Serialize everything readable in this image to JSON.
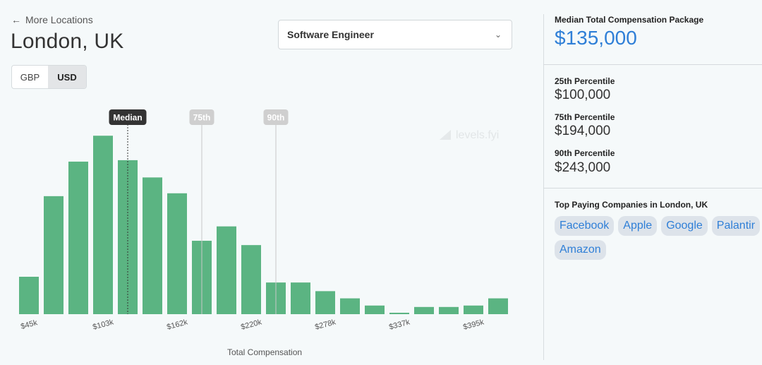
{
  "back_link": "More Locations",
  "location": "London, UK",
  "currency": {
    "options": [
      "GBP",
      "USD"
    ],
    "selected": "USD"
  },
  "role": "Software Engineer",
  "watermark": "levels.fyi",
  "summary": {
    "median_label": "Median Total Compensation Package",
    "median_value": "$135,000",
    "percentiles": [
      {
        "label": "25th Percentile",
        "value": "$100,000"
      },
      {
        "label": "75th Percentile",
        "value": "$194,000"
      },
      {
        "label": "90th Percentile",
        "value": "$243,000"
      }
    ]
  },
  "top_companies": {
    "title": "Top Paying Companies in London, UK",
    "companies": [
      "Facebook",
      "Apple",
      "Google",
      "Palantir",
      "Amazon"
    ]
  },
  "colors": {
    "bar": "#5bb482",
    "accent": "#2f7fd7",
    "median_marker": "#333333",
    "pct_marker": "#cfcfcf"
  },
  "chart_data": {
    "type": "bar",
    "xlabel": "Total Compensation",
    "ylabel": "",
    "tick_labels": [
      "$45k",
      "$103k",
      "$162k",
      "$220k",
      "$278k",
      "$337k",
      "$395k"
    ],
    "values": [
      26,
      82,
      106,
      124,
      107,
      95,
      84,
      51,
      61,
      48,
      22,
      22,
      16,
      11,
      6,
      1,
      5,
      5,
      6,
      11
    ],
    "ylim": [
      0,
      130
    ],
    "markers": [
      {
        "label": "Median",
        "bin": 4.4
      },
      {
        "label": "75th",
        "bin": 7.4
      },
      {
        "label": "90th",
        "bin": 10.4
      }
    ]
  }
}
